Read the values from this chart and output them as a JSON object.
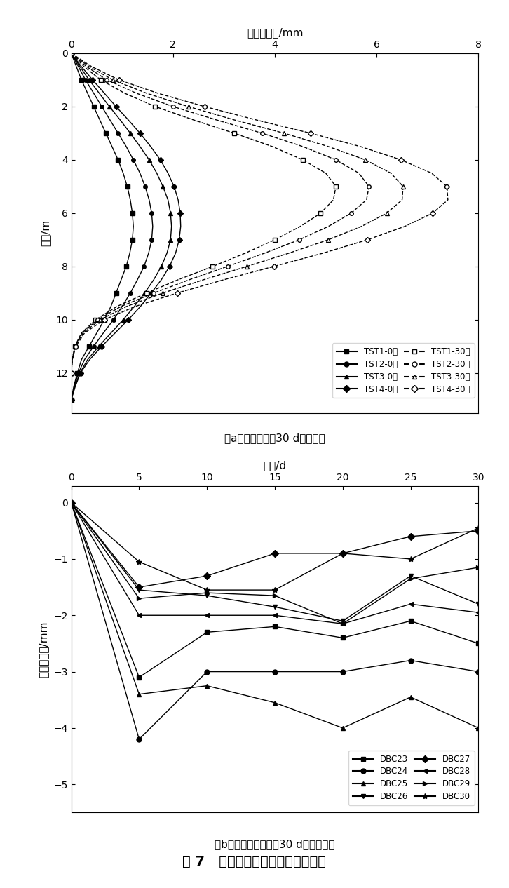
{
  "panel_a": {
    "title_x": "累积位移量/mm",
    "ylabel": "深度/m",
    "xlim": [
      0,
      8
    ],
    "ylim": [
      13.5,
      0
    ],
    "xticks": [
      0,
      2,
      4,
      6,
      8
    ],
    "yticks": [
      0,
      2,
      4,
      6,
      8,
      10,
      12
    ],
    "caption": "（a）地表监测点30 d累计沉降",
    "depth_0day": [
      0,
      0.5,
      1.0,
      1.5,
      2.0,
      2.5,
      3.0,
      3.5,
      4.0,
      4.5,
      5.0,
      5.5,
      6.0,
      6.5,
      7.0,
      7.5,
      8.0,
      8.5,
      9.0,
      9.5,
      10.0,
      10.5,
      11.0,
      11.5,
      12.0,
      12.5,
      13.0
    ],
    "depth_30day": [
      0,
      0.5,
      1.0,
      1.5,
      2.0,
      2.5,
      3.0,
      3.5,
      4.0,
      4.5,
      5.0,
      5.5,
      6.0,
      6.5,
      7.0,
      7.5,
      8.0,
      8.5,
      9.0,
      9.5,
      10.0,
      10.5,
      11.0,
      11.5,
      12.0
    ],
    "tst1_0": [
      0,
      0.1,
      0.2,
      0.32,
      0.44,
      0.56,
      0.68,
      0.8,
      0.92,
      1.02,
      1.1,
      1.16,
      1.2,
      1.22,
      1.2,
      1.15,
      1.08,
      0.98,
      0.88,
      0.78,
      0.65,
      0.5,
      0.35,
      0.2,
      0.12,
      0.05,
      0.0
    ],
    "tst2_0": [
      0,
      0.14,
      0.28,
      0.44,
      0.6,
      0.76,
      0.92,
      1.08,
      1.22,
      1.35,
      1.45,
      1.53,
      1.58,
      1.6,
      1.58,
      1.52,
      1.43,
      1.3,
      1.16,
      1.0,
      0.83,
      0.63,
      0.44,
      0.26,
      0.14,
      0.06,
      0.0
    ],
    "tst3_0": [
      0,
      0.17,
      0.35,
      0.55,
      0.75,
      0.96,
      1.16,
      1.35,
      1.53,
      1.68,
      1.8,
      1.9,
      1.95,
      1.97,
      1.95,
      1.88,
      1.77,
      1.62,
      1.44,
      1.24,
      1.02,
      0.78,
      0.54,
      0.32,
      0.17,
      0.07,
      0.0
    ],
    "tst4_0": [
      0,
      0.2,
      0.42,
      0.65,
      0.88,
      1.12,
      1.35,
      1.56,
      1.75,
      1.9,
      2.02,
      2.1,
      2.14,
      2.15,
      2.12,
      2.05,
      1.93,
      1.77,
      1.57,
      1.36,
      1.12,
      0.86,
      0.6,
      0.36,
      0.18,
      0.08,
      0.0
    ],
    "tst1_30": [
      0,
      0.25,
      0.58,
      1.05,
      1.65,
      2.4,
      3.2,
      3.95,
      4.55,
      5.0,
      5.2,
      5.15,
      4.9,
      4.5,
      4.0,
      3.42,
      2.78,
      2.1,
      1.48,
      0.9,
      0.48,
      0.2,
      0.07,
      0.02,
      0.0
    ],
    "tst2_30": [
      0,
      0.3,
      0.7,
      1.28,
      2.0,
      2.85,
      3.75,
      4.55,
      5.2,
      5.65,
      5.85,
      5.8,
      5.5,
      5.05,
      4.48,
      3.8,
      3.07,
      2.32,
      1.62,
      0.98,
      0.52,
      0.21,
      0.07,
      0.02,
      0.0
    ],
    "tst3_30": [
      0,
      0.35,
      0.82,
      1.48,
      2.3,
      3.2,
      4.18,
      5.05,
      5.78,
      6.28,
      6.52,
      6.5,
      6.2,
      5.7,
      5.05,
      4.28,
      3.45,
      2.6,
      1.8,
      1.09,
      0.57,
      0.23,
      0.08,
      0.02,
      0.0
    ],
    "tst4_30": [
      0,
      0.4,
      0.94,
      1.7,
      2.62,
      3.63,
      4.7,
      5.68,
      6.48,
      7.08,
      7.38,
      7.4,
      7.1,
      6.55,
      5.82,
      4.95,
      3.98,
      3.0,
      2.08,
      1.26,
      0.65,
      0.26,
      0.09,
      0.02,
      0.0
    ]
  },
  "panel_b": {
    "title_x": "时间/d",
    "ylabel": "累积沉降量/mm",
    "xlim": [
      0,
      30
    ],
    "ylim": [
      -5.5,
      0.3
    ],
    "xticks": [
      0,
      5,
      10,
      15,
      20,
      25,
      30
    ],
    "yticks": [
      0,
      -1,
      -2,
      -3,
      -4,
      -5
    ],
    "caption": "（b）水平位移监测点30 d累计位移量",
    "DBC23_x": [
      0,
      5,
      10,
      15,
      20,
      25,
      30
    ],
    "DBC23_y": [
      0,
      -3.1,
      -2.3,
      -2.2,
      -2.4,
      -2.1,
      -2.5
    ],
    "DBC24_x": [
      0,
      5,
      10,
      15,
      20,
      25,
      30
    ],
    "DBC24_y": [
      0,
      -4.2,
      -3.0,
      -3.0,
      -3.0,
      -2.8,
      -3.0
    ],
    "DBC25_x": [
      0,
      5,
      10,
      15,
      20,
      25,
      30
    ],
    "DBC25_y": [
      0,
      -3.4,
      -3.25,
      -3.55,
      -4.0,
      -3.45,
      -4.0
    ],
    "DBC26_x": [
      0,
      5,
      10,
      15,
      20,
      25,
      30
    ],
    "DBC26_y": [
      0,
      -1.55,
      -1.65,
      -1.85,
      -2.1,
      -1.3,
      -1.8
    ],
    "DBC27_x": [
      0,
      5,
      10,
      15,
      20,
      25,
      30
    ],
    "DBC27_y": [
      0,
      -1.5,
      -1.3,
      -0.9,
      -0.9,
      -0.6,
      -0.5
    ],
    "DBC28_x": [
      0,
      5,
      10,
      15,
      20,
      25,
      30
    ],
    "DBC28_y": [
      0,
      -2.0,
      -2.0,
      -2.0,
      -2.15,
      -1.8,
      -1.95
    ],
    "DBC29_x": [
      0,
      5,
      10,
      15,
      20,
      25,
      30
    ],
    "DBC29_y": [
      0,
      -1.7,
      -1.6,
      -1.65,
      -2.15,
      -1.35,
      -1.15
    ],
    "DBC30_x": [
      0,
      5,
      10,
      15,
      20,
      25,
      30
    ],
    "DBC30_y": [
      0,
      -1.05,
      -1.55,
      -1.55,
      -0.9,
      -1.0,
      -0.45
    ]
  },
  "figure_caption": "图 7   地表沉降和水平位移监测结果",
  "bg_color": "#ffffff"
}
